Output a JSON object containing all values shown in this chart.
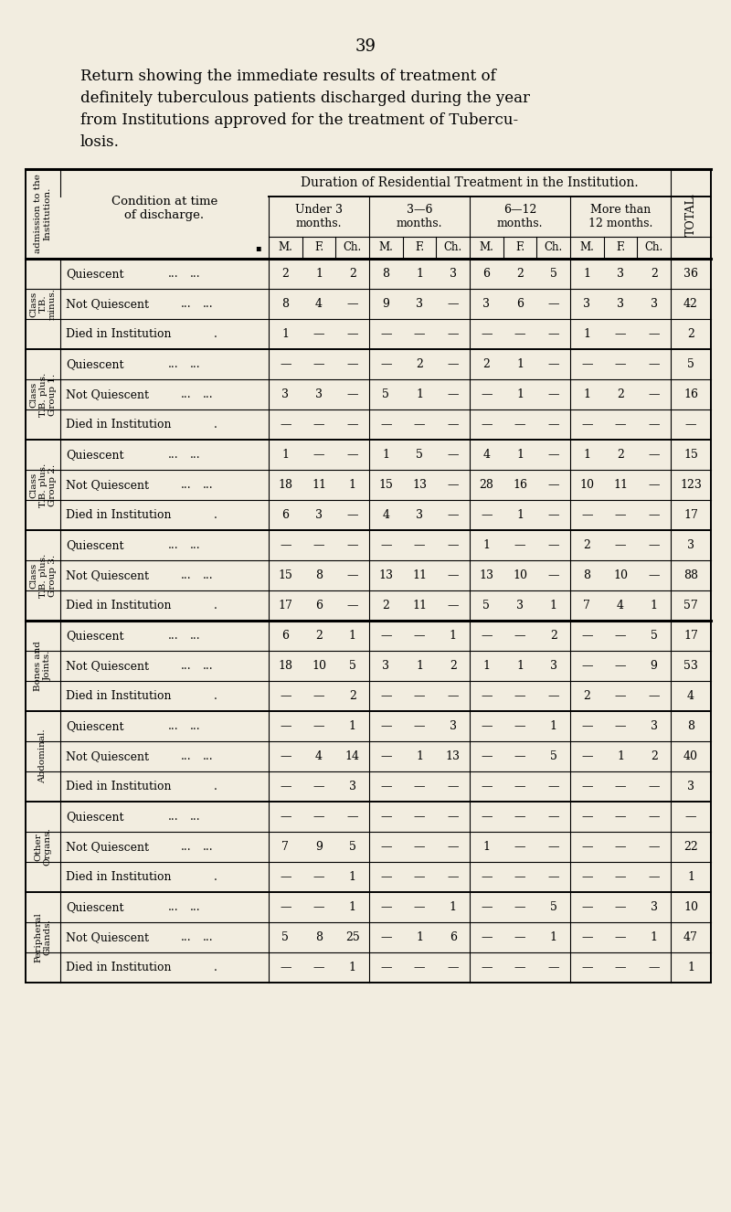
{
  "page_number": "39",
  "title_lines": [
    "Return showing the immediate results of treatment of",
    "definitely tuberculous patients discharged during the year",
    "from Institutions approved for the treatment of Tubercu-",
    "losis."
  ],
  "bg_color": "#f2ede0",
  "header_duration": "Duration of Residential Treatment in the Institution.",
  "col_headers": [
    "Under 3\nmonths.",
    "3—6\nmonths.",
    "6—12\nmonths.",
    "More than\n12 months."
  ],
  "subheaders": [
    "M.",
    "F.",
    "Ch.",
    "M.",
    "F.",
    "Ch.",
    "M.",
    "F.",
    "Ch.",
    "M.",
    "F.",
    "Ch."
  ],
  "total_header": "TOTAL.",
  "row_groups": [
    {
      "label": "Class\nT.B.\nminus.",
      "rows": [
        {
          "condition": "Quiescent",
          "vals": [
            "2",
            "1",
            "2",
            "8",
            "1",
            "3",
            "6",
            "2",
            "5",
            "1",
            "3",
            "2"
          ],
          "total": "36"
        },
        {
          "condition": "Not Quiescent",
          "vals": [
            "8",
            "4",
            "—",
            "9",
            "3",
            "—",
            "3",
            "6",
            "—",
            "3",
            "3",
            "3"
          ],
          "total": "42"
        },
        {
          "condition": "Died in Institution",
          "vals": [
            "1",
            "—",
            "—",
            "—",
            "—",
            "—",
            "—",
            "—",
            "—",
            "1",
            "—",
            "—"
          ],
          "total": "2"
        }
      ],
      "thick_bottom": false
    },
    {
      "label": "Class\nT.B. plus.\nGroup 1.",
      "rows": [
        {
          "condition": "Quiescent",
          "vals": [
            "—",
            "—",
            "—",
            "—",
            "2",
            "—",
            "2",
            "1",
            "—",
            "—",
            "—",
            "—"
          ],
          "total": "5"
        },
        {
          "condition": "Not Quiescent",
          "vals": [
            "3",
            "3",
            "—",
            "5",
            "1",
            "—",
            "—",
            "1",
            "—",
            "1",
            "2",
            "—"
          ],
          "total": "16"
        },
        {
          "condition": "Died in Institution",
          "vals": [
            "—",
            "—",
            "—",
            "—",
            "—",
            "—",
            "—",
            "—",
            "—",
            "—",
            "—",
            "—"
          ],
          "total": "—"
        }
      ],
      "thick_bottom": false
    },
    {
      "label": "Class\nT.B. plus.\nGroup 2.",
      "rows": [
        {
          "condition": "Quiescent",
          "vals": [
            "1",
            "—",
            "—",
            "1",
            "5",
            "—",
            "4",
            "1",
            "—",
            "1",
            "2",
            "—"
          ],
          "total": "15"
        },
        {
          "condition": "Not Quiescent",
          "vals": [
            "18",
            "11",
            "1",
            "15",
            "13",
            "—",
            "28",
            "16",
            "—",
            "10",
            "11",
            "—"
          ],
          "total": "123"
        },
        {
          "condition": "Died in Institution",
          "vals": [
            "6",
            "3",
            "—",
            "4",
            "3",
            "—",
            "—",
            "1",
            "—",
            "—",
            "—",
            "—"
          ],
          "total": "17"
        }
      ],
      "thick_bottom": false
    },
    {
      "label": "Class\nT.B. plus.\nGroup 3.",
      "rows": [
        {
          "condition": "Quiescent",
          "vals": [
            "—",
            "—",
            "—",
            "—",
            "—",
            "—",
            "1",
            "—",
            "—",
            "2",
            "—",
            "—"
          ],
          "total": "3"
        },
        {
          "condition": "Not Quiescent",
          "vals": [
            "15",
            "8",
            "—",
            "13",
            "11",
            "—",
            "13",
            "10",
            "—",
            "8",
            "10",
            "—"
          ],
          "total": "88"
        },
        {
          "condition": "Died in Institution",
          "vals": [
            "17",
            "6",
            "—",
            "2",
            "11",
            "—",
            "5",
            "3",
            "1",
            "7",
            "4",
            "1"
          ],
          "total": "57"
        }
      ],
      "thick_bottom": true
    },
    {
      "label": "Bones and\nJoints.",
      "rows": [
        {
          "condition": "Quiescent",
          "vals": [
            "6",
            "2",
            "1",
            "—",
            "—",
            "1",
            "—",
            "—",
            "2",
            "—",
            "—",
            "5"
          ],
          "total": "17"
        },
        {
          "condition": "Not Quiescent",
          "vals": [
            "18",
            "10",
            "5",
            "3",
            "1",
            "2",
            "1",
            "1",
            "3",
            "—",
            "—",
            "9"
          ],
          "total": "53"
        },
        {
          "condition": "Died in Institution",
          "vals": [
            "—",
            "—",
            "2",
            "—",
            "—",
            "—",
            "—",
            "—",
            "—",
            "2",
            "—",
            "—"
          ],
          "total": "4"
        }
      ],
      "thick_bottom": false
    },
    {
      "label": "Abdominal.",
      "rows": [
        {
          "condition": "Quiescent",
          "vals": [
            "—",
            "—",
            "1",
            "—",
            "—",
            "3",
            "—",
            "—",
            "1",
            "—",
            "—",
            "3"
          ],
          "total": "8"
        },
        {
          "condition": "Not Quiescent",
          "vals": [
            "—",
            "4",
            "14",
            "—",
            "1",
            "13",
            "—",
            "—",
            "5",
            "—",
            "1",
            "2"
          ],
          "total": "40"
        },
        {
          "condition": "Died in Institution",
          "vals": [
            "—",
            "—",
            "3",
            "—",
            "—",
            "—",
            "—",
            "—",
            "—",
            "—",
            "—",
            "—"
          ],
          "total": "3"
        }
      ],
      "thick_bottom": false
    },
    {
      "label": "Other\nOrgans.",
      "rows": [
        {
          "condition": "Quiescent",
          "vals": [
            "—",
            "—",
            "—",
            "—",
            "—",
            "—",
            "—",
            "—",
            "—",
            "—",
            "—",
            "—"
          ],
          "total": "—"
        },
        {
          "condition": "Not Quiescent",
          "vals": [
            "7",
            "9",
            "5",
            "—",
            "—",
            "—",
            "1",
            "—",
            "—",
            "—",
            "—",
            "—"
          ],
          "total": "22"
        },
        {
          "condition": "Died in Institution",
          "vals": [
            "—",
            "—",
            "1",
            "—",
            "—",
            "—",
            "—",
            "—",
            "—",
            "—",
            "—",
            "—"
          ],
          "total": "1"
        }
      ],
      "thick_bottom": false
    },
    {
      "label": "Peripheral\nGlands.",
      "rows": [
        {
          "condition": "Quiescent",
          "vals": [
            "—",
            "—",
            "1",
            "—",
            "—",
            "1",
            "—",
            "—",
            "5",
            "—",
            "—",
            "3"
          ],
          "total": "10"
        },
        {
          "condition": "Not Quiescent",
          "vals": [
            "5",
            "8",
            "25",
            "—",
            "1",
            "6",
            "—",
            "—",
            "1",
            "—",
            "—",
            "1"
          ],
          "total": "47"
        },
        {
          "condition": "Died in Institution",
          "vals": [
            "—",
            "—",
            "1",
            "—",
            "—",
            "—",
            "—",
            "—",
            "—",
            "—",
            "—",
            "—"
          ],
          "total": "1"
        }
      ],
      "thick_bottom": false
    }
  ]
}
